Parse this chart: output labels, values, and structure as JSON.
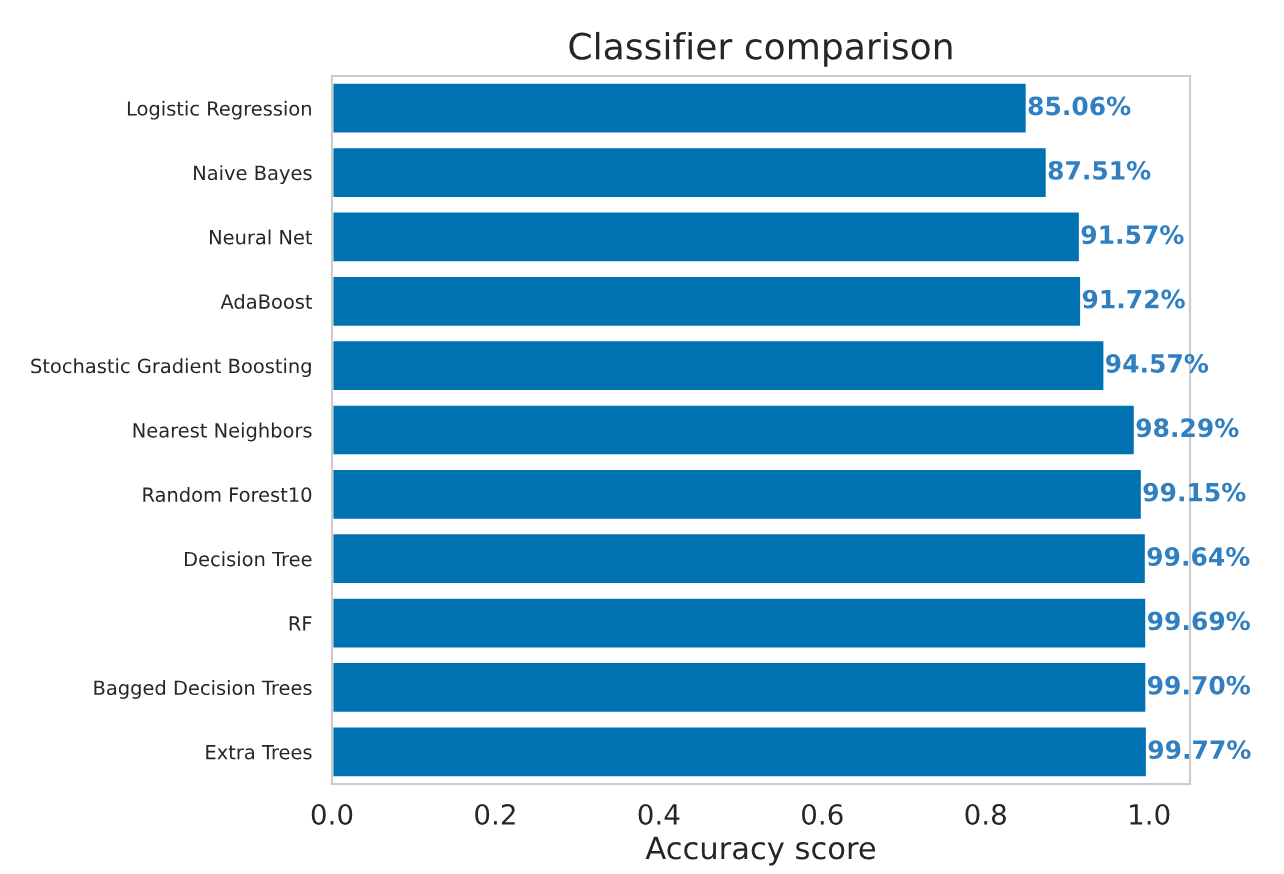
{
  "chart_data": {
    "type": "bar",
    "orientation": "horizontal",
    "title": "Classifier comparison",
    "xlabel": "Accuracy score",
    "categories": [
      "Logistic Regression",
      "Naive Bayes",
      "Neural Net",
      "AdaBoost",
      "Stochastic Gradient Boosting",
      "Nearest Neighbors",
      "Random Forest10",
      "Decision Tree",
      "RF",
      "Bagged Decision Trees",
      "Extra Trees"
    ],
    "values": [
      0.8506,
      0.8751,
      0.9157,
      0.9172,
      0.9457,
      0.9829,
      0.9915,
      0.9964,
      0.9969,
      0.997,
      0.9977
    ],
    "value_labels": [
      "85.06%",
      "87.51%",
      "91.57%",
      "91.72%",
      "94.57%",
      "98.29%",
      "99.15%",
      "99.64%",
      "99.69%",
      "99.70%",
      "99.77%"
    ],
    "color": "#0072b2",
    "xlim": [
      0,
      1.05
    ],
    "xticks": [
      {
        "value": 0,
        "label": "0.0"
      },
      0.2,
      0.4,
      0.6,
      0.8,
      {
        "value": 1,
        "label": "1.0"
      }
    ],
    "grid": false,
    "legend": false
  }
}
